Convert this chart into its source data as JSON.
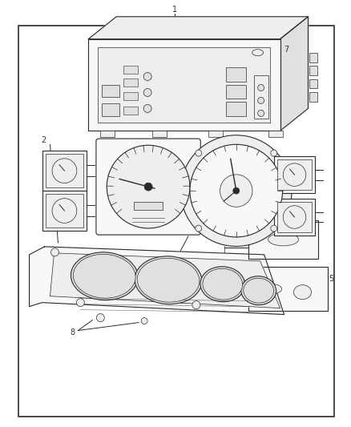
{
  "bg_color": "#ffffff",
  "lc": "#2a2a2a",
  "lc_light": "#666666",
  "fill_light": "#f8f8f8",
  "fill_mid": "#eeeeee",
  "fill_dark": "#e0e0e0",
  "label_color": "#333333",
  "border_lw": 1.2,
  "part_lw": 0.8,
  "detail_lw": 0.5,
  "label_fs": 7.0,
  "fig_w": 4.38,
  "fig_h": 5.33,
  "dpi": 100
}
